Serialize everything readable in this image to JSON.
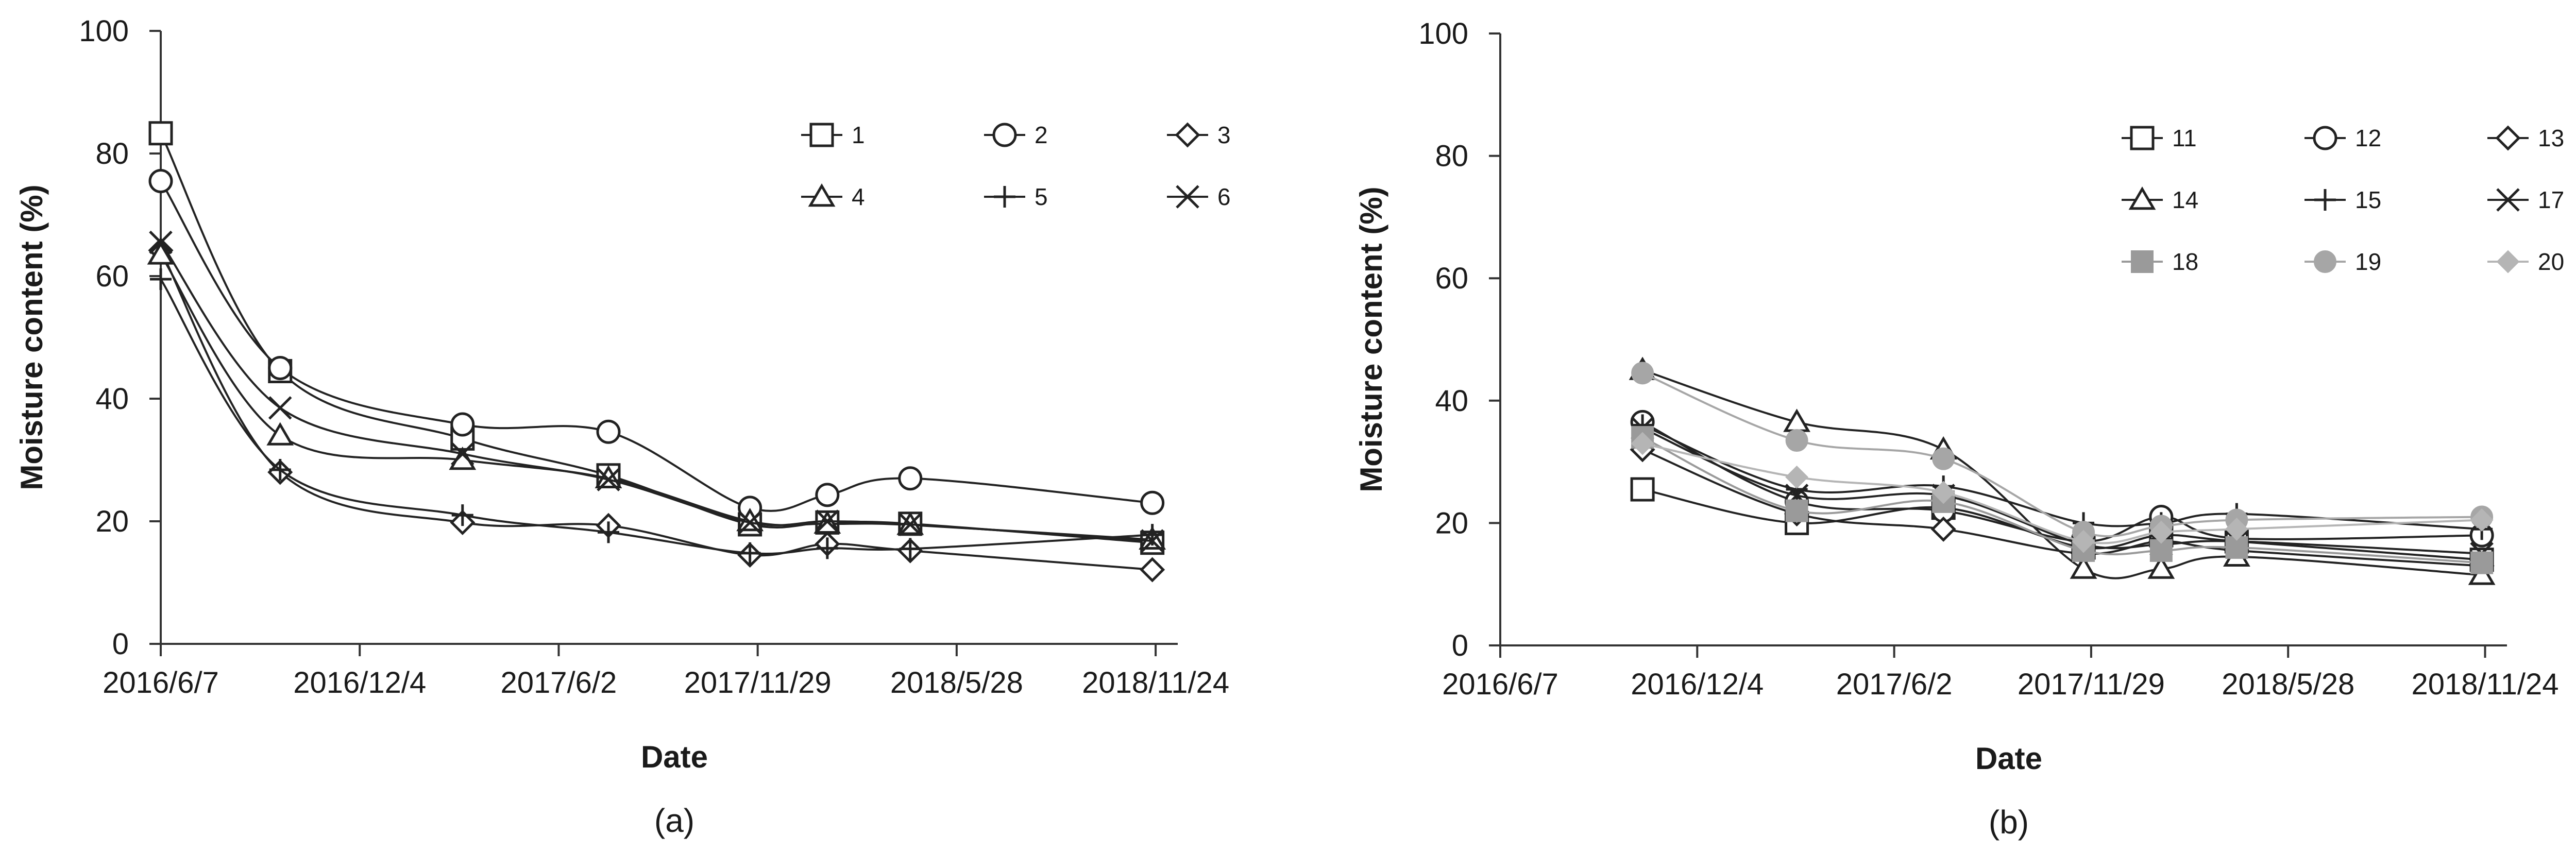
{
  "chart_data": [
    {
      "type": "line",
      "panel_label": "(a)",
      "xlabel": "Date",
      "ylabel": "Moisture content (%)",
      "xlim": [
        "2016/6/7",
        "2018/12/14"
      ],
      "ylim": [
        0,
        100
      ],
      "xticks": [
        "2016/6/7",
        "2016/12/4",
        "2017/6/2",
        "2017/11/29",
        "2018/5/28",
        "2018/11/24"
      ],
      "yticks": [
        0,
        20,
        40,
        60,
        80,
        100
      ],
      "grid": false,
      "legend_position": "top-right",
      "legend_cols": 3,
      "series": [
        {
          "name": "1",
          "marker": "square-open",
          "color": "#222222",
          "points": [
            [
              "2016/6/7",
              83.3
            ],
            [
              "2016/9/23",
              44.5
            ],
            [
              "2017/3/7",
              33.5
            ],
            [
              "2017/7/17",
              27.5
            ],
            [
              "2017/11/22",
              19.5
            ],
            [
              "2018/1/31",
              19.8
            ],
            [
              "2018/4/16",
              19.6
            ],
            [
              "2018/11/21",
              16.5
            ]
          ]
        },
        {
          "name": "2",
          "marker": "circle-open",
          "color": "#222222",
          "points": [
            [
              "2016/6/7",
              75.5
            ],
            [
              "2016/9/23",
              45.0
            ],
            [
              "2017/3/7",
              35.8
            ],
            [
              "2017/7/17",
              34.6
            ],
            [
              "2017/11/22",
              22.2
            ],
            [
              "2018/1/31",
              24.3
            ],
            [
              "2018/4/16",
              27.0
            ],
            [
              "2018/11/21",
              23.0
            ]
          ]
        },
        {
          "name": "3",
          "marker": "diamond-open",
          "color": "#222222",
          "points": [
            [
              "2016/6/7",
              64.2
            ],
            [
              "2016/9/23",
              28.0
            ],
            [
              "2017/3/7",
              19.8
            ],
            [
              "2017/7/17",
              19.3
            ],
            [
              "2017/11/22",
              14.5
            ],
            [
              "2018/1/31",
              16.3
            ],
            [
              "2018/4/16",
              15.2
            ],
            [
              "2018/11/21",
              12.1
            ]
          ]
        },
        {
          "name": "4",
          "marker": "triangle-open",
          "color": "#222222",
          "points": [
            [
              "2016/6/7",
              63.5
            ],
            [
              "2016/9/23",
              34.0
            ],
            [
              "2017/3/7",
              30.0
            ],
            [
              "2017/7/17",
              27.0
            ],
            [
              "2017/11/22",
              20.0
            ],
            [
              "2018/1/31",
              19.6
            ],
            [
              "2018/4/16",
              19.4
            ],
            [
              "2018/11/21",
              17.0
            ]
          ]
        },
        {
          "name": "5",
          "marker": "plus",
          "color": "#222222",
          "points": [
            [
              "2016/6/7",
              59.5
            ],
            [
              "2016/9/23",
              28.4
            ],
            [
              "2017/3/7",
              21.0
            ],
            [
              "2017/7/17",
              18.2
            ],
            [
              "2017/11/22",
              14.8
            ],
            [
              "2018/1/31",
              15.6
            ],
            [
              "2018/4/16",
              15.5
            ],
            [
              "2018/11/21",
              17.8
            ]
          ]
        },
        {
          "name": "6",
          "marker": "x",
          "color": "#222222",
          "points": [
            [
              "2016/6/7",
              65.5
            ],
            [
              "2016/9/23",
              38.5
            ],
            [
              "2017/3/7",
              31.0
            ],
            [
              "2017/7/17",
              26.8
            ],
            [
              "2017/11/22",
              19.8
            ],
            [
              "2018/1/31",
              20.0
            ],
            [
              "2018/4/16",
              19.5
            ],
            [
              "2018/11/21",
              16.8
            ]
          ]
        }
      ]
    },
    {
      "type": "line",
      "panel_label": "(b)",
      "xlabel": "Date",
      "ylabel": "Moisture content (%)",
      "xlim": [
        "2016/6/7",
        "2018/12/14"
      ],
      "ylim": [
        0,
        100
      ],
      "xticks": [
        "2016/6/7",
        "2016/12/4",
        "2017/6/2",
        "2017/11/29",
        "2018/5/28",
        "2018/11/24"
      ],
      "yticks": [
        0,
        20,
        40,
        60,
        80,
        100
      ],
      "grid": false,
      "legend_position": "top-right",
      "legend_cols": 3,
      "series": [
        {
          "name": "11",
          "marker": "square-open",
          "color": "#222222",
          "points": [
            [
              "2016/10/15",
              25.5
            ],
            [
              "2017/3/5",
              20.0
            ],
            [
              "2017/7/17",
              22.5
            ],
            [
              "2017/11/22",
              16.0
            ],
            [
              "2018/2/1",
              18.0
            ],
            [
              "2018/4/11",
              17.0
            ],
            [
              "2018/11/21",
              14.0
            ]
          ]
        },
        {
          "name": "12",
          "marker": "circle-open",
          "color": "#222222",
          "points": [
            [
              "2016/10/15",
              36.5
            ],
            [
              "2017/3/5",
              23.5
            ],
            [
              "2017/7/17",
              22.0
            ],
            [
              "2017/11/22",
              17.0
            ],
            [
              "2018/2/1",
              21.0
            ],
            [
              "2018/4/11",
              17.5
            ],
            [
              "2018/11/21",
              18.0
            ]
          ]
        },
        {
          "name": "13",
          "marker": "diamond-open",
          "color": "#222222",
          "points": [
            [
              "2016/10/15",
              32.0
            ],
            [
              "2017/3/5",
              21.5
            ],
            [
              "2017/7/17",
              19.0
            ],
            [
              "2017/11/22",
              15.0
            ],
            [
              "2018/2/1",
              17.0
            ],
            [
              "2018/4/11",
              15.5
            ],
            [
              "2018/11/21",
              13.0
            ]
          ]
        },
        {
          "name": "14",
          "marker": "triangle-open",
          "color": "#222222",
          "points": [
            [
              "2016/10/15",
              45.0
            ],
            [
              "2017/3/5",
              36.5
            ],
            [
              "2017/7/17",
              32.0
            ],
            [
              "2017/11/22",
              12.5
            ],
            [
              "2018/2/1",
              12.5
            ],
            [
              "2018/4/11",
              14.5
            ],
            [
              "2018/11/21",
              11.5
            ]
          ]
        },
        {
          "name": "15",
          "marker": "plus",
          "color": "#222222",
          "points": [
            [
              "2016/10/15",
              36.0
            ],
            [
              "2017/3/5",
              25.5
            ],
            [
              "2017/7/17",
              26.0
            ],
            [
              "2017/11/22",
              20.0
            ],
            [
              "2018/2/1",
              20.0
            ],
            [
              "2018/4/11",
              21.5
            ],
            [
              "2018/11/21",
              19.0
            ]
          ]
        },
        {
          "name": "17",
          "marker": "x",
          "color": "#222222",
          "points": [
            [
              "2016/10/15",
              35.5
            ],
            [
              "2017/3/5",
              24.5
            ],
            [
              "2017/7/17",
              24.5
            ],
            [
              "2017/11/22",
              16.5
            ],
            [
              "2018/2/1",
              16.5
            ],
            [
              "2018/4/11",
              17.0
            ],
            [
              "2018/11/21",
              15.0
            ]
          ]
        },
        {
          "name": "18",
          "marker": "square-filled",
          "color": "#9a9a9a",
          "points": [
            [
              "2016/10/15",
              34.0
            ],
            [
              "2017/3/5",
              22.0
            ],
            [
              "2017/7/17",
              23.5
            ],
            [
              "2017/11/22",
              15.5
            ],
            [
              "2018/2/1",
              15.5
            ],
            [
              "2018/4/11",
              16.0
            ],
            [
              "2018/11/21",
              13.5
            ]
          ]
        },
        {
          "name": "19",
          "marker": "circle-filled",
          "color": "#a6a6a6",
          "points": [
            [
              "2016/10/15",
              44.5
            ],
            [
              "2017/3/5",
              33.5
            ],
            [
              "2017/7/17",
              30.5
            ],
            [
              "2017/11/22",
              18.5
            ],
            [
              "2018/2/1",
              19.5
            ],
            [
              "2018/4/11",
              20.5
            ],
            [
              "2018/11/21",
              21.0
            ]
          ]
        },
        {
          "name": "20",
          "marker": "diamond-filled",
          "color": "#b5b5b5",
          "points": [
            [
              "2016/10/15",
              33.0
            ],
            [
              "2017/3/5",
              27.5
            ],
            [
              "2017/7/17",
              25.0
            ],
            [
              "2017/11/22",
              17.0
            ],
            [
              "2018/2/1",
              18.5
            ],
            [
              "2018/4/11",
              19.0
            ],
            [
              "2018/11/21",
              20.5
            ]
          ]
        }
      ]
    }
  ]
}
